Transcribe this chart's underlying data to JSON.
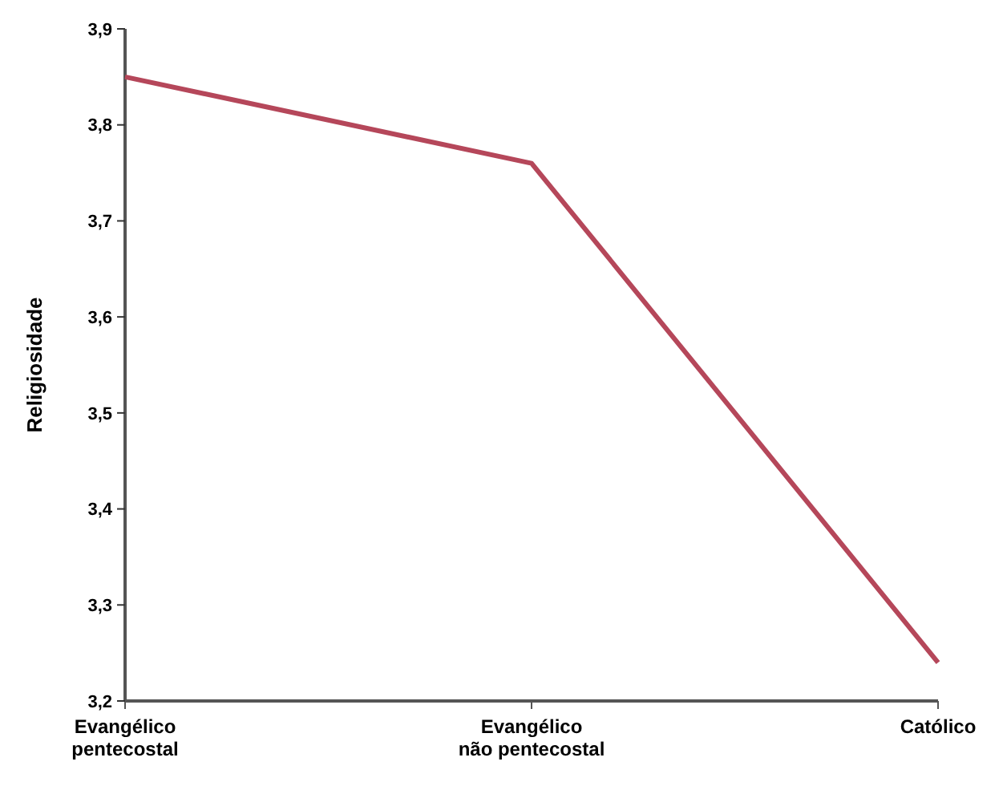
{
  "chart_data": {
    "type": "line",
    "ylabel": "Religiosidade",
    "categories": [
      "Evangélico pentecostal",
      "Evangélico não pentecostal",
      "Católico"
    ],
    "series": [
      {
        "color": "#b5475a",
        "values": [
          3.85,
          3.76,
          3.24
        ]
      }
    ],
    "ylim": [
      3.2,
      3.9
    ],
    "yticks": [
      {
        "value": 3.2,
        "label": "3,2"
      },
      {
        "value": 3.3,
        "label": "3,3"
      },
      {
        "value": 3.4,
        "label": "3,4"
      },
      {
        "value": 3.5,
        "label": "3,5"
      },
      {
        "value": 3.6,
        "label": "3,6"
      },
      {
        "value": 3.7,
        "label": "3,7"
      },
      {
        "value": 3.8,
        "label": "3,8"
      },
      {
        "value": 3.9,
        "label": "3,9"
      }
    ],
    "marker": "none",
    "line_style": "solid"
  }
}
